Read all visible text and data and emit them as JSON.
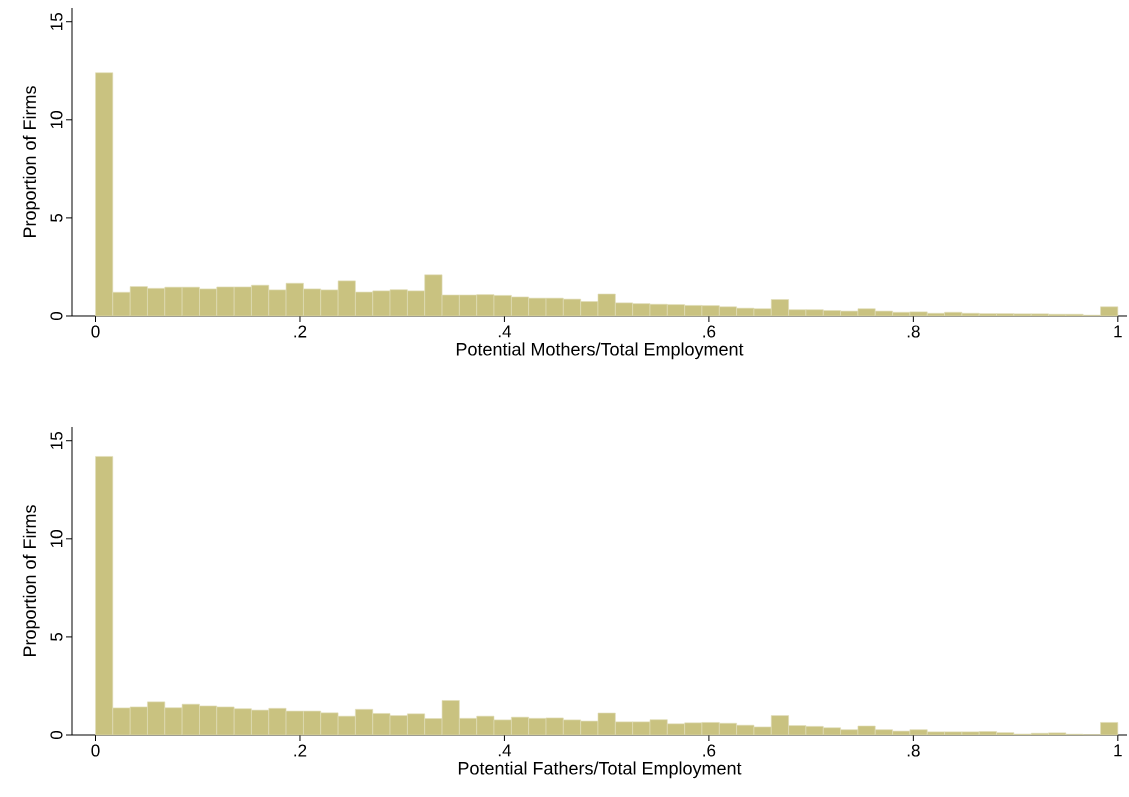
{
  "chart_data": [
    {
      "type": "histogram",
      "xlabel": "Potential Mothers/Total Employment",
      "ylabel": "Proportion of Firms",
      "color": "#c9c280",
      "bins": [
        0,
        0.0169,
        0.0339,
        0.0508,
        0.0678,
        0.0847,
        0.1017,
        0.1186,
        0.1356,
        0.1525,
        0.1695,
        0.1864,
        0.2034,
        0.2203,
        0.2373,
        0.2542,
        0.2712,
        0.2881,
        0.3051,
        0.322,
        0.339,
        0.3559,
        0.3729,
        0.3898,
        0.4068,
        0.4237,
        0.4407,
        0.4576,
        0.4746,
        0.4915,
        0.5085,
        0.5254,
        0.5424,
        0.5593,
        0.5763,
        0.5932,
        0.6102,
        0.6271,
        0.6441,
        0.661,
        0.678,
        0.6949,
        0.7119,
        0.7288,
        0.7458,
        0.7627,
        0.7797,
        0.7966,
        0.8136,
        0.8305,
        0.8475,
        0.8644,
        0.8814,
        0.8983,
        0.9153,
        0.9322,
        0.9492,
        0.9661,
        0.9831,
        1
      ],
      "values": [
        12.4,
        1.21,
        1.5,
        1.41,
        1.47,
        1.47,
        1.38,
        1.48,
        1.48,
        1.57,
        1.33,
        1.67,
        1.38,
        1.33,
        1.79,
        1.22,
        1.28,
        1.34,
        1.28,
        2.1,
        1.07,
        1.07,
        1.09,
        1.05,
        0.97,
        0.91,
        0.91,
        0.86,
        0.74,
        1.12,
        0.67,
        0.63,
        0.6,
        0.58,
        0.54,
        0.53,
        0.47,
        0.4,
        0.37,
        0.84,
        0.32,
        0.32,
        0.28,
        0.25,
        0.37,
        0.25,
        0.19,
        0.21,
        0.14,
        0.19,
        0.14,
        0.12,
        0.12,
        0.11,
        0.11,
        0.09,
        0.09,
        0.04,
        0.47
      ],
      "xlim": [
        -0.023,
        1.009
      ],
      "ylim": [
        0,
        15.7
      ],
      "xticks": [
        0,
        {
          "value": 0.2,
          "label": ".2"
        },
        {
          "value": 0.4,
          "label": ".4"
        },
        {
          "value": 0.6,
          "label": ".6"
        },
        {
          "value": 0.8,
          "label": ".8"
        },
        1
      ],
      "yticks": [
        0,
        5,
        10,
        15
      ]
    },
    {
      "type": "histogram",
      "xlabel": "Potential Fathers/Total Employment",
      "ylabel": "Proportion of Firms",
      "color": "#c9c280",
      "bins": [
        0,
        0.0169,
        0.0339,
        0.0508,
        0.0678,
        0.0847,
        0.1017,
        0.1186,
        0.1356,
        0.1525,
        0.1695,
        0.1864,
        0.2034,
        0.2203,
        0.2373,
        0.2542,
        0.2712,
        0.2881,
        0.3051,
        0.322,
        0.339,
        0.3559,
        0.3729,
        0.3898,
        0.4068,
        0.4237,
        0.4407,
        0.4576,
        0.4746,
        0.4915,
        0.5085,
        0.5254,
        0.5424,
        0.5593,
        0.5763,
        0.5932,
        0.6102,
        0.6271,
        0.6441,
        0.661,
        0.678,
        0.6949,
        0.7119,
        0.7288,
        0.7458,
        0.7627,
        0.7797,
        0.7966,
        0.8136,
        0.8305,
        0.8475,
        0.8644,
        0.8814,
        0.8983,
        0.9153,
        0.9322,
        0.9492,
        0.9661,
        0.9831,
        1
      ],
      "values": [
        14.2,
        1.38,
        1.43,
        1.69,
        1.39,
        1.57,
        1.48,
        1.43,
        1.34,
        1.27,
        1.36,
        1.22,
        1.22,
        1.13,
        0.96,
        1.31,
        1.1,
        0.99,
        1.08,
        0.84,
        1.76,
        0.85,
        0.96,
        0.77,
        0.91,
        0.85,
        0.87,
        0.77,
        0.71,
        1.12,
        0.67,
        0.67,
        0.78,
        0.57,
        0.62,
        0.64,
        0.6,
        0.5,
        0.41,
        0.99,
        0.48,
        0.44,
        0.37,
        0.27,
        0.46,
        0.27,
        0.2,
        0.27,
        0.16,
        0.16,
        0.16,
        0.18,
        0.12,
        0.05,
        0.09,
        0.11,
        0.04,
        0.02,
        0.64
      ],
      "xlim": [
        -0.023,
        1.009
      ],
      "ylim": [
        0,
        15.7
      ],
      "xticks": [
        0,
        {
          "value": 0.2,
          "label": ".2"
        },
        {
          "value": 0.4,
          "label": ".4"
        },
        {
          "value": 0.6,
          "label": ".6"
        },
        {
          "value": 0.8,
          "label": ".8"
        },
        1
      ],
      "yticks": [
        0,
        5,
        10,
        15
      ]
    }
  ]
}
